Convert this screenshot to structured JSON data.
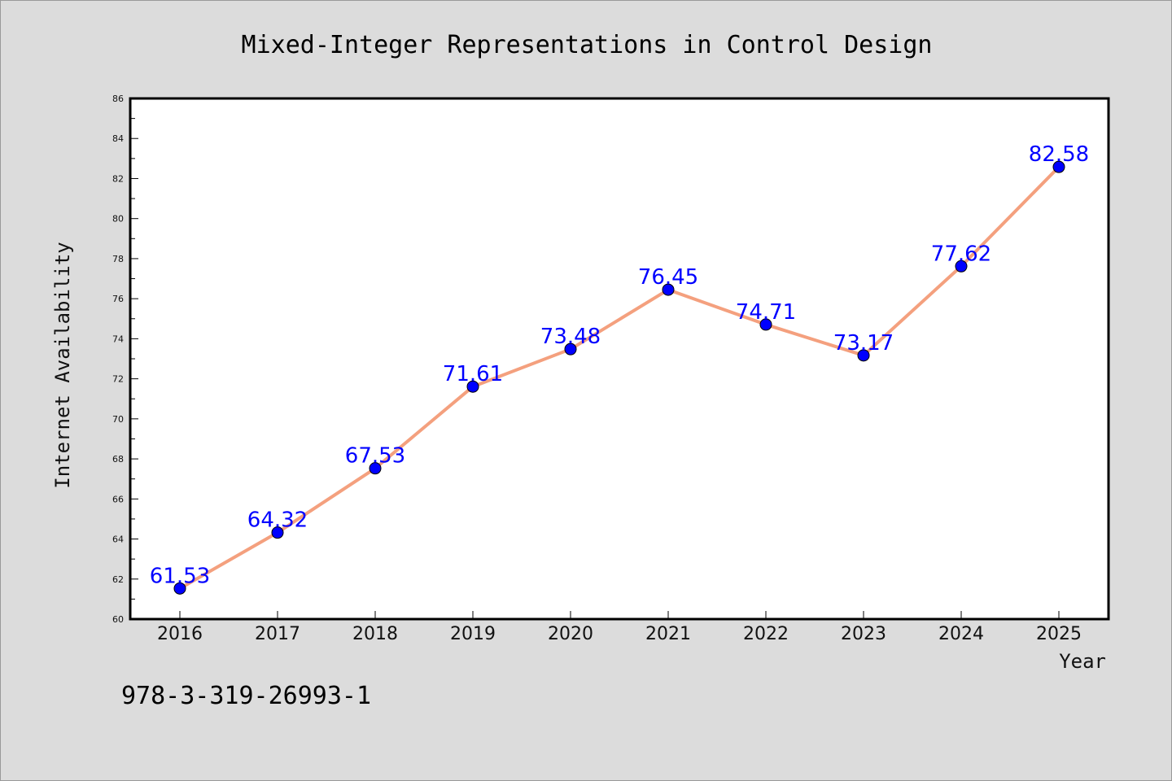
{
  "chart_data": {
    "type": "line",
    "title": "Mixed-Integer Representations in Control Design",
    "xlabel": "Year",
    "ylabel": "Internet Availability",
    "categories": [
      "2016",
      "2017",
      "2018",
      "2019",
      "2020",
      "2021",
      "2022",
      "2023",
      "2024",
      "2025"
    ],
    "series": [
      {
        "values": [
          61.53,
          64.32,
          67.53,
          71.61,
          73.48,
          76.45,
          74.71,
          73.17,
          77.62,
          82.58
        ],
        "data_labels": [
          "61.53",
          "64.32",
          "67.53",
          "71.61",
          "73.48",
          "76.45",
          "74.71",
          "73.17",
          "77.62",
          "82.58"
        ]
      }
    ],
    "ylim": [
      60,
      86
    ],
    "yticks": [
      "60",
      "62",
      "64",
      "66",
      "68",
      "70",
      "72",
      "74",
      "76",
      "78",
      "80",
      "82",
      "84",
      "86"
    ],
    "grid": false,
    "colors": {
      "line": "#f4a07e",
      "marker": "#0000ff",
      "data_label": "#0000ff",
      "background": "#dcdcdc",
      "plot_background": "#ffffff"
    }
  },
  "footer": {
    "isbn": "978-3-319-26993-1"
  }
}
